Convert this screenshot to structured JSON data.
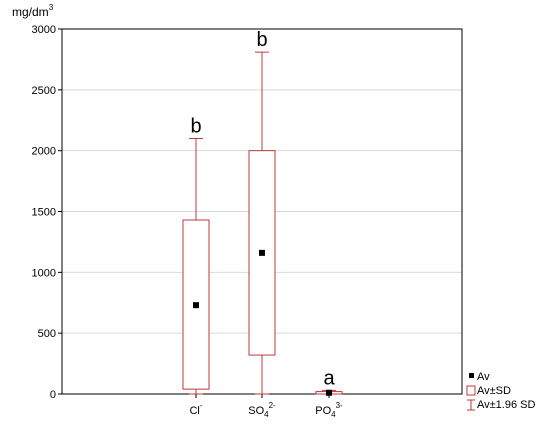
{
  "chart_data": {
    "type": "box",
    "ylabel": "mg/dm",
    "ylabel_superscript": "3",
    "ylim": [
      0,
      3000
    ],
    "yticks": [
      "0",
      "500",
      "1000",
      "1500",
      "2000",
      "2500",
      "3000"
    ],
    "categories": [
      {
        "base": "Cl",
        "sub": "",
        "sup": "-"
      },
      {
        "base": "SO",
        "sub": "4",
        "sup": "2-"
      },
      {
        "base": "PO",
        "sub": "4",
        "sup": "3-"
      }
    ],
    "boxes": [
      {
        "mean": 730,
        "sd_low": 40,
        "sd_high": 1430,
        "ci_low": 0,
        "ci_high": 2100,
        "label": "b"
      },
      {
        "mean": 1160,
        "sd_low": 320,
        "sd_high": 2000,
        "ci_low": 0,
        "ci_high": 2810,
        "label": "b"
      },
      {
        "mean": 10,
        "sd_low": 0,
        "sd_high": 20,
        "ci_low": 0,
        "ci_high": 30,
        "label": "a"
      }
    ],
    "grid": true,
    "legend_position": "bottom-right",
    "colors": {
      "box": "#c0393b",
      "mean": "#000000",
      "grid": "#d9d9d9",
      "axis": "#000000"
    }
  },
  "legend": {
    "mean_label": "Av",
    "box_label": "Av±SD",
    "whisker_label": "Av±1.96 SD"
  }
}
